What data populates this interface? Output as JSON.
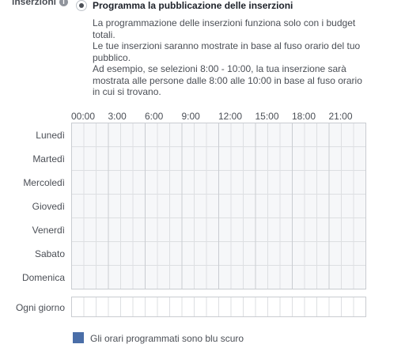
{
  "section": {
    "label": "inserzioni",
    "info_icon": "info-icon"
  },
  "option": {
    "title": "Programma la pubblicazione delle inserzioni",
    "selected": true,
    "description": [
      "La programmazione delle inserzioni funziona solo con i budget totali.",
      "Le tue inserzioni saranno mostrate in base al fuso orario del tuo pubblico.",
      "Ad esempio, se selezioni 8:00 - 10:00, la tua inserzione sarà mostrata alle persone dalle 8:00 alle 10:00 in base al fuso orario in cui si trovano."
    ]
  },
  "schedule": {
    "hour_labels": [
      "00:00",
      "3:00",
      "6:00",
      "9:00",
      "12:00",
      "15:00",
      "18:00",
      "21:00"
    ],
    "days": [
      "Lunedì",
      "Martedì",
      "Mercoledì",
      "Giovedì",
      "Venerdì",
      "Sabato",
      "Domenica"
    ],
    "every_day_label": "Ogni giorno",
    "selected_slots": []
  },
  "legend": {
    "text": "Gli orari programmati sono blu scuro",
    "color": "#4a6ea8"
  },
  "colors": {
    "cell_bg": "#f6f7f9",
    "cell_border": "#dddfe2",
    "major_line": "#c9ccd1"
  }
}
